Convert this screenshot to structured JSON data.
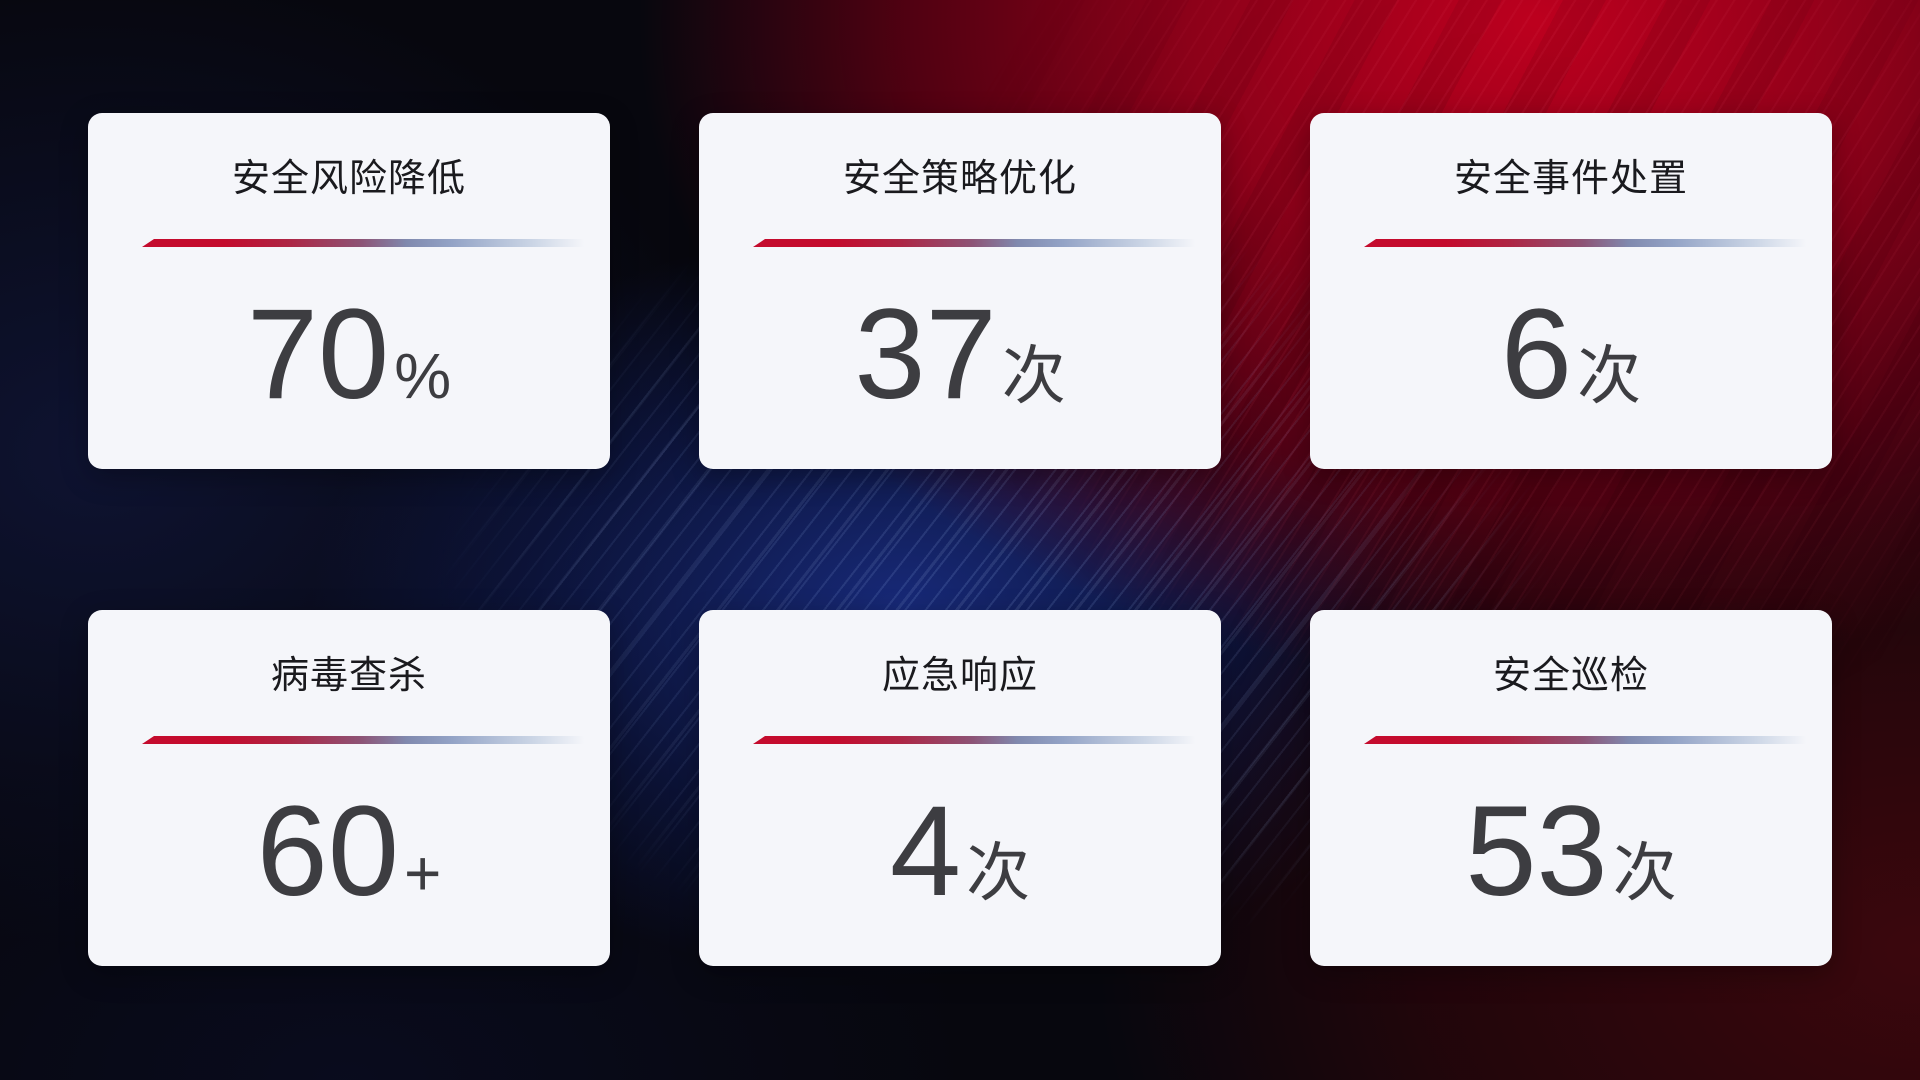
{
  "cards": [
    {
      "title": "安全风险降低",
      "value": "70",
      "unit": "%"
    },
    {
      "title": "安全策略优化",
      "value": "37",
      "unit": "次"
    },
    {
      "title": "安全事件处置",
      "value": "6",
      "unit": "次"
    },
    {
      "title": "病毒查杀",
      "value": "60",
      "unit": "+"
    },
    {
      "title": "应急响应",
      "value": "4",
      "unit": "次"
    },
    {
      "title": "安全巡检",
      "value": "53",
      "unit": "次"
    }
  ],
  "colors": {
    "accent_red": "#c40b2d",
    "divider_blue": "#b3c0d8",
    "card_background": "#f5f6fa",
    "title_text": "#1a1a1e",
    "value_text": "#3d3d41",
    "background_navy": "#1a2f8a",
    "background_dark": "#07070e"
  }
}
